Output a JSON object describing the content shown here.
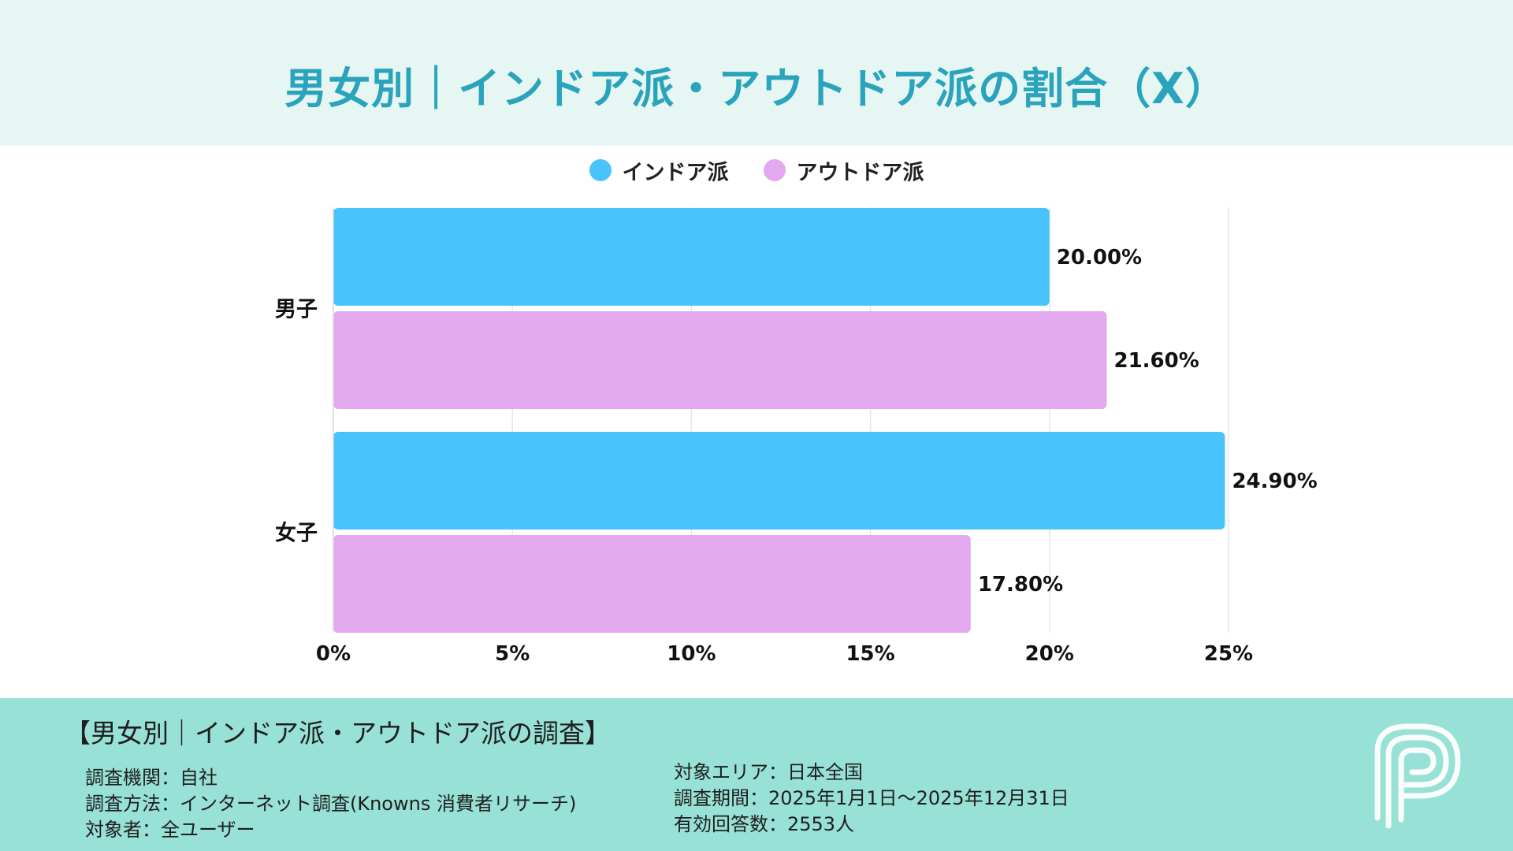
{
  "header": {
    "title": "男女別｜インドア派・アウトドア派の割合（X）"
  },
  "colors": {
    "indoor": "#48c3fb",
    "outdoor": "#e2a9ee",
    "header_bg": "#e6f6f3",
    "footer_bg": "#98e1d6",
    "title": "#2aa3bd"
  },
  "chart_data": {
    "type": "bar",
    "orientation": "horizontal",
    "categories": [
      "男子",
      "女子"
    ],
    "series": [
      {
        "name": "インドア派",
        "values": [
          20.0,
          24.9
        ],
        "labels": [
          "20.00%",
          "24.90%"
        ]
      },
      {
        "name": "アウトドア派",
        "values": [
          21.6,
          17.8
        ],
        "labels": [
          "21.60%",
          "17.80%"
        ]
      }
    ],
    "xlim": [
      0,
      25
    ],
    "xticks": [
      0,
      5,
      10,
      15,
      20,
      25
    ],
    "xtick_labels": [
      "0%",
      "5%",
      "10%",
      "15%",
      "20%",
      "25%"
    ],
    "grid": true,
    "legend": "top-center"
  },
  "footer": {
    "heading": "【男女別｜インドア派・アウトドア派の調査】",
    "left": [
      "調査機関：自社",
      "調査方法：インターネット調査(Knowns 消費者リサーチ)",
      "対象者：全ユーザー"
    ],
    "right": [
      "対象エリア：日本全国",
      "調査期間：2025年1月1日〜2025年12月31日",
      "有効回答数：2553人"
    ]
  },
  "logo": {
    "icon": "p-logo-icon"
  }
}
